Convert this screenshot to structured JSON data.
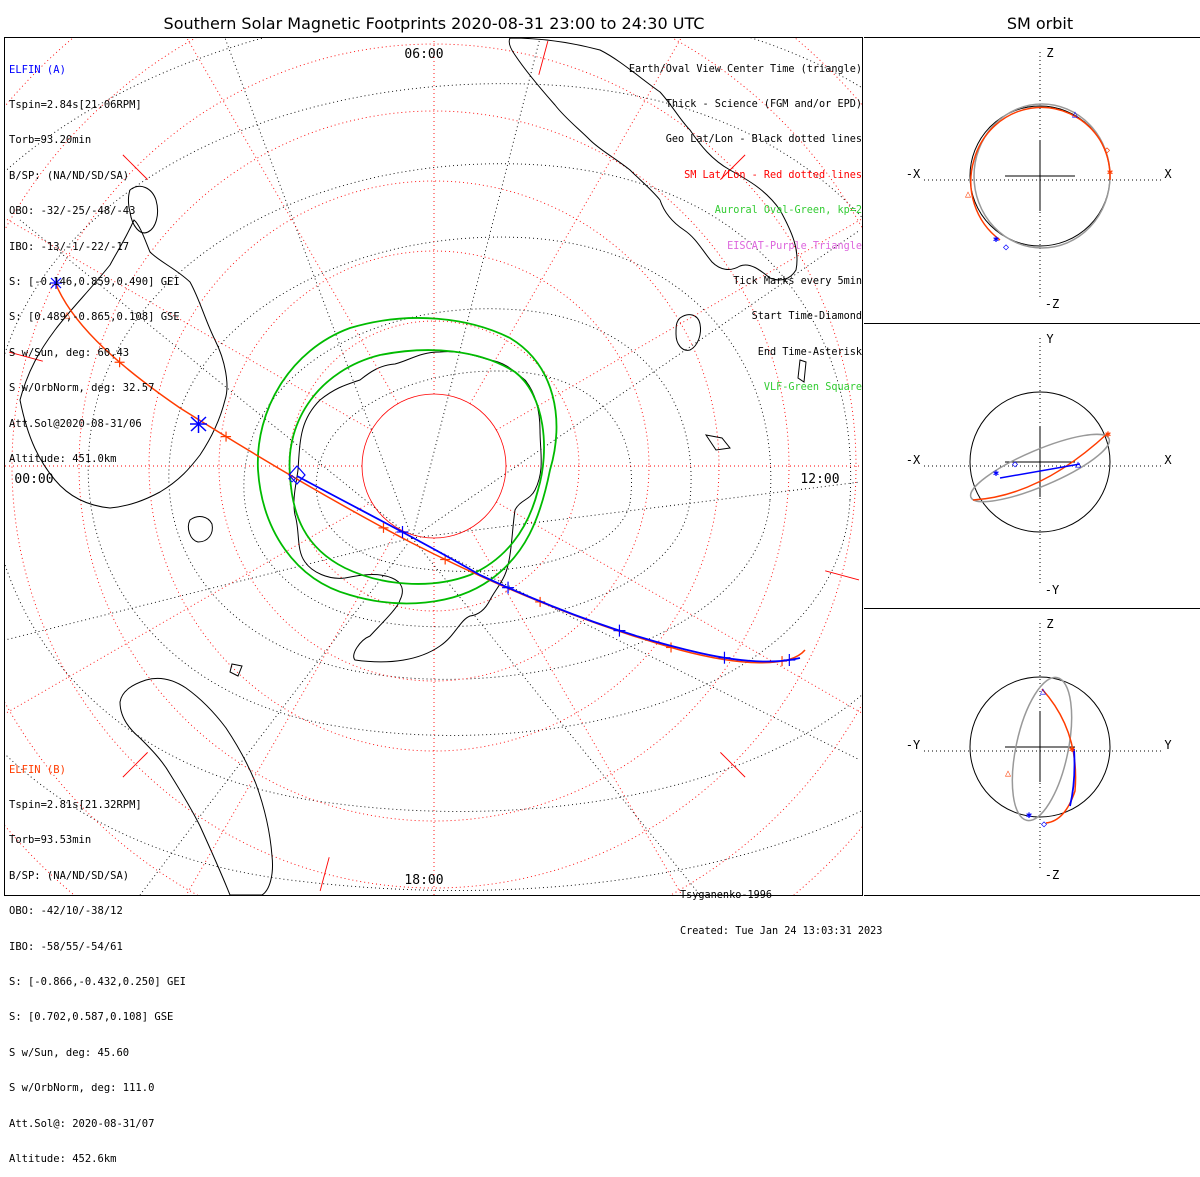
{
  "title": "Southern Solar Magnetic Footprints 2020-08-31 23:00 to 24:30 UTC",
  "side_title": "SM orbit",
  "colors": {
    "elfin_a": "#0000ff",
    "elfin_b": "#ff3c00",
    "sm_grid": "#ff0000",
    "geo_grid": "#000000",
    "auroral_oval": "#00bb00",
    "orbit_gray": "#999999"
  },
  "time_labels": {
    "top": "06:00",
    "left": "00:00",
    "right": "12:00",
    "bottom": "18:00"
  },
  "elfin_a": {
    "name": "ELFIN (A)",
    "lines": [
      "Tspin=2.84s[21.06RPM]",
      "Torb=93.20min",
      "B/SP: (NA/ND/SD/SA)",
      "OBO: -32/-25/-48/-43",
      "IBO: -13/-1/-22/-17",
      "S: [-0.146,0.859,0.490] GEI",
      "S: [0.489,-0.865,0.108] GSE",
      "S w/Sun, deg: 60.43",
      "S w/OrbNorm, deg: 32.57",
      "Att.Sol@2020-08-31/06",
      "Altitude: 451.0km"
    ]
  },
  "elfin_b": {
    "name": "ELFIN (B)",
    "lines": [
      "Tspin=2.81s[21.32RPM]",
      "Torb=93.53min",
      "B/SP: (NA/ND/SD/SA)",
      "OBO: -42/10/-38/12",
      "IBO: -58/55/-54/61",
      "S: [-0.866,-0.432,0.250] GEI",
      "S: [0.702,0.587,0.108] GSE",
      "S w/Sun, deg: 45.60",
      "S w/OrbNorm, deg: 111.0",
      "Att.Sol@: 2020-08-31/07",
      "Altitude: 452.6km"
    ]
  },
  "legend": [
    {
      "text": "Earth/Oval View Center Time (triangle)",
      "color": "#000000"
    },
    {
      "text": "Thick - Science (FGM and/or EPD)",
      "color": "#000000"
    },
    {
      "text": "Geo Lat/Lon - Black dotted lines",
      "color": "#000000"
    },
    {
      "text": "SM Lat/Lon - Red dotted lines",
      "color": "#ff0000"
    },
    {
      "text": "Auroral Oval-Green, kp=2",
      "color": "#33cc33"
    },
    {
      "text": "EISCAT-Purple Triangle",
      "color": "#dd66dd"
    },
    {
      "text": "Tick Marks every 5min",
      "color": "#000000"
    },
    {
      "text": "Start Time-Diamond",
      "color": "#000000"
    },
    {
      "text": "End Time-Asterisk",
      "color": "#000000"
    },
    {
      "text": "VLF-Green Square",
      "color": "#33cc33"
    }
  ],
  "credits": {
    "model": "Tsyganenko-1996",
    "created": "Created: Tue Jan 24 13:03:31 2023"
  },
  "orbit_panels": [
    {
      "top": "Z",
      "bottom": "-Z",
      "left": "-X",
      "right": "X"
    },
    {
      "top": "Y",
      "bottom": "-Y",
      "left": "-X",
      "right": "X"
    },
    {
      "top": "Z",
      "bottom": "-Z",
      "left": "-Y",
      "right": "Y"
    }
  ]
}
